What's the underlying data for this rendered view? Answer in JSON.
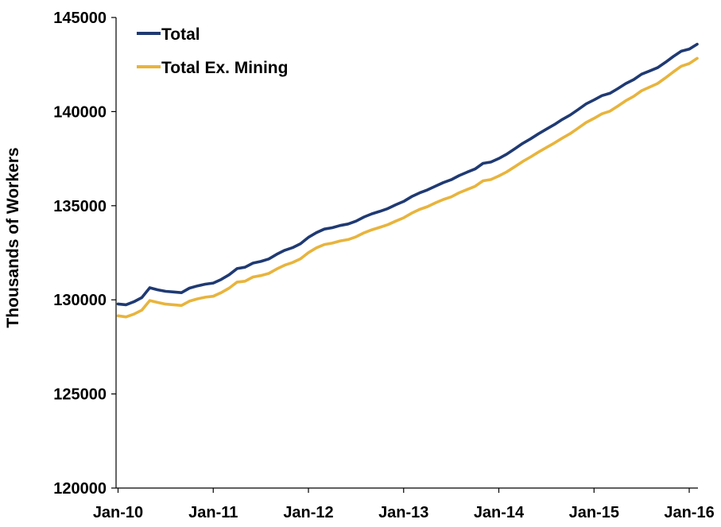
{
  "chart_data": {
    "type": "line",
    "title": "",
    "xlabel": "",
    "ylabel": "Thousands of Workers",
    "ylim": [
      120000,
      145000
    ],
    "y_ticks": [
      "120000",
      "125000",
      "130000",
      "135000",
      "140000",
      "145000"
    ],
    "x_start": "Jan-10",
    "x_end": "Feb-16",
    "x_ticks": [
      "Jan-10",
      "Jan-11",
      "Jan-12",
      "Jan-13",
      "Jan-14",
      "Jan-15",
      "Jan-16"
    ],
    "grid": false,
    "legend_position": "top-left",
    "series": [
      {
        "name": "Total",
        "color": "#1F3A73",
        "values": [
          129780,
          129740,
          129900,
          130120,
          130640,
          130530,
          130450,
          130420,
          130380,
          130620,
          130740,
          130830,
          130890,
          131080,
          131330,
          131660,
          131730,
          131950,
          132040,
          132170,
          132420,
          132630,
          132770,
          132980,
          133320,
          133570,
          133760,
          133830,
          133950,
          134030,
          134180,
          134400,
          134570,
          134700,
          134850,
          135050,
          135230,
          135480,
          135680,
          135840,
          136040,
          136230,
          136380,
          136600,
          136780,
          136950,
          137250,
          137320,
          137510,
          137740,
          138020,
          138310,
          138550,
          138820,
          139070,
          139310,
          139580,
          139820,
          140110,
          140410,
          140620,
          140850,
          140970,
          141220,
          141490,
          141700,
          141990,
          142160,
          142330,
          142620,
          142930,
          143210,
          143320,
          143580
        ]
      },
      {
        "name": "Total Ex. Mining",
        "color": "#E8B43C",
        "values": [
          129150,
          129090,
          129240,
          129450,
          129960,
          129860,
          129770,
          129740,
          129700,
          129930,
          130050,
          130140,
          130190,
          130380,
          130620,
          130940,
          130990,
          131210,
          131290,
          131400,
          131640,
          131840,
          131980,
          132180,
          132510,
          132760,
          132940,
          133010,
          133130,
          133200,
          133350,
          133560,
          133720,
          133850,
          133990,
          134180,
          134360,
          134600,
          134800,
          134950,
          135150,
          135330,
          135470,
          135690,
          135860,
          136030,
          136320,
          136390,
          136580,
          136800,
          137070,
          137350,
          137590,
          137850,
          138090,
          138330,
          138590,
          138830,
          139120,
          139420,
          139640,
          139880,
          140020,
          140290,
          140580,
          140810,
          141110,
          141300,
          141490,
          141790,
          142110,
          142410,
          142550,
          142830
        ]
      }
    ]
  }
}
